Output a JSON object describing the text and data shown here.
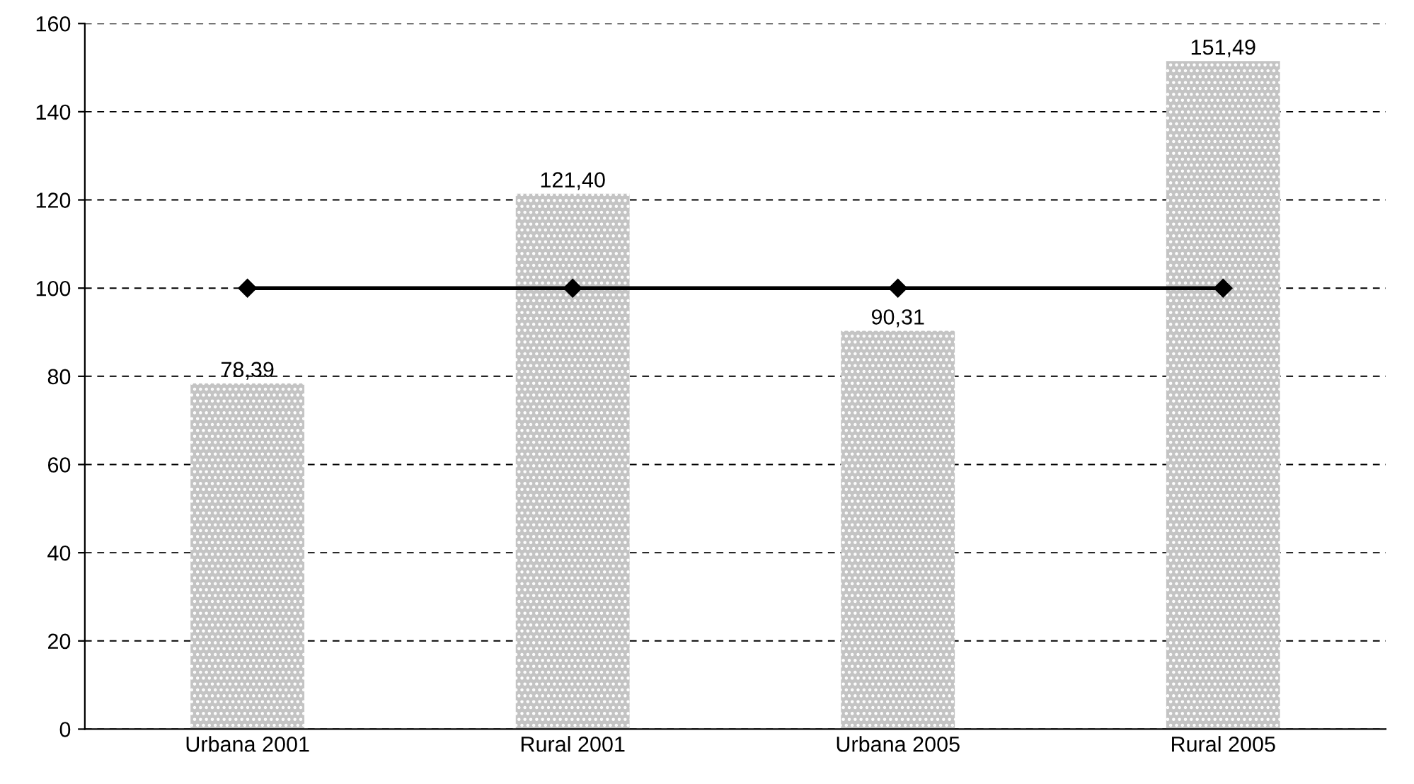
{
  "chart_data": {
    "type": "bar",
    "categories": [
      "Urbana 2001",
      "Rural 2001",
      "Urbana 2005",
      "Rural 2005"
    ],
    "series": [
      {
        "color": "#c4c4c4",
        "values": [
          78.39,
          121.4,
          90.31,
          151.49
        ],
        "value_labels": [
          "78,39",
          "121,40",
          "90,31",
          "151,49"
        ]
      },
      {
        "type": "line",
        "color": "#000000",
        "values": [
          100,
          100,
          100,
          100
        ],
        "marker": "diamond",
        "line_style": "solid"
      }
    ],
    "ylim": [
      0,
      160
    ],
    "yticks": [
      0,
      20,
      40,
      60,
      80,
      100,
      120,
      140,
      160
    ],
    "grid": "y"
  }
}
